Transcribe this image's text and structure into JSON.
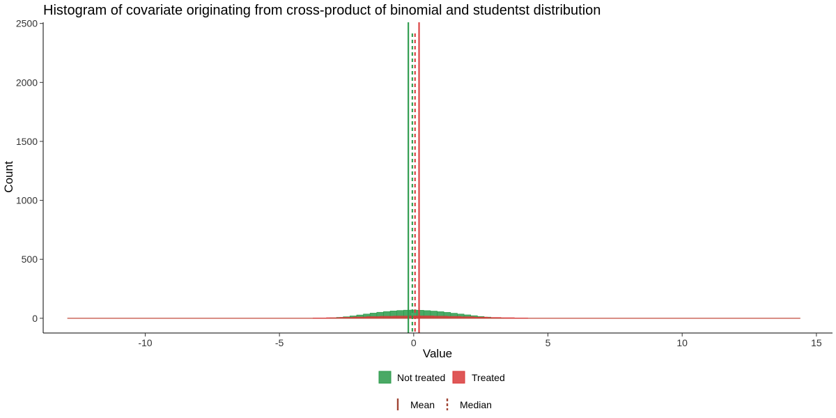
{
  "chart_data": {
    "type": "histogram",
    "title": "Histogram of covariate originating from cross-product of binomial and studentst distribution",
    "xlabel": "Value",
    "ylabel": "Count",
    "xlim": [
      -13.8,
      15.6
    ],
    "ylim": [
      -125,
      2510
    ],
    "x_ticks": [
      -10,
      -5,
      0,
      5,
      10,
      15
    ],
    "x_tick_labels": [
      "-10",
      "-5",
      "0",
      "5",
      "10",
      "15"
    ],
    "y_ticks": [
      0,
      500,
      1000,
      1500,
      2000,
      2500
    ],
    "y_tick_labels": [
      "0",
      "500",
      "1000",
      "1500",
      "2000",
      "2500"
    ],
    "grid": false,
    "legend_position": "bottom",
    "data_range": [
      -12.9,
      14.4
    ],
    "series": [
      {
        "name": "Not treated",
        "color": "#2a9a4a",
        "bins": [
          {
            "x": -3.0,
            "count": 4
          },
          {
            "x": -2.75,
            "count": 8
          },
          {
            "x": -2.5,
            "count": 13
          },
          {
            "x": -2.25,
            "count": 20
          },
          {
            "x": -2.0,
            "count": 28
          },
          {
            "x": -1.75,
            "count": 36
          },
          {
            "x": -1.5,
            "count": 44
          },
          {
            "x": -1.25,
            "count": 51
          },
          {
            "x": -1.0,
            "count": 57
          },
          {
            "x": -0.75,
            "count": 62
          },
          {
            "x": -0.5,
            "count": 66
          },
          {
            "x": -0.25,
            "count": 69
          },
          {
            "x": 0.0,
            "count": 70
          },
          {
            "x": 0.25,
            "count": 68
          },
          {
            "x": 0.5,
            "count": 65
          },
          {
            "x": 0.75,
            "count": 61
          },
          {
            "x": 1.0,
            "count": 56
          },
          {
            "x": 1.25,
            "count": 50
          },
          {
            "x": 1.5,
            "count": 43
          },
          {
            "x": 1.75,
            "count": 36
          },
          {
            "x": 2.0,
            "count": 29
          },
          {
            "x": 2.25,
            "count": 22
          },
          {
            "x": 2.5,
            "count": 15
          },
          {
            "x": 2.75,
            "count": 10
          },
          {
            "x": 3.0,
            "count": 6
          },
          {
            "x": 3.25,
            "count": 3
          }
        ],
        "mean": -0.2,
        "median": -0.05
      },
      {
        "name": "Treated",
        "color": "#d93a3a",
        "bins": [
          {
            "x": -3.5,
            "count": 3
          },
          {
            "x": -3.0,
            "count": 5
          },
          {
            "x": -2.5,
            "count": 8
          },
          {
            "x": -2.0,
            "count": 11
          },
          {
            "x": -1.5,
            "count": 14
          },
          {
            "x": -1.0,
            "count": 17
          },
          {
            "x": -0.5,
            "count": 19
          },
          {
            "x": 0.0,
            "count": 20
          },
          {
            "x": 0.5,
            "count": 20
          },
          {
            "x": 1.0,
            "count": 18
          },
          {
            "x": 1.5,
            "count": 16
          },
          {
            "x": 2.0,
            "count": 13
          },
          {
            "x": 2.5,
            "count": 10
          },
          {
            "x": 3.0,
            "count": 7
          },
          {
            "x": 3.5,
            "count": 5
          },
          {
            "x": 4.0,
            "count": 3
          }
        ],
        "mean": 0.2,
        "median": 0.05
      }
    ],
    "reference_lines": [
      {
        "label": "Mean",
        "style": "solid"
      },
      {
        "label": "Median",
        "style": "dashed"
      }
    ],
    "fill_legend": [
      {
        "label": "Not treated",
        "color": "#2a9a4a"
      },
      {
        "label": "Treated",
        "color": "#d93a3a"
      }
    ],
    "line_legend": [
      {
        "label": "Mean",
        "style": "solid",
        "color": "#a04535"
      },
      {
        "label": "Median",
        "style": "dashed",
        "color": "#a04535"
      }
    ]
  }
}
